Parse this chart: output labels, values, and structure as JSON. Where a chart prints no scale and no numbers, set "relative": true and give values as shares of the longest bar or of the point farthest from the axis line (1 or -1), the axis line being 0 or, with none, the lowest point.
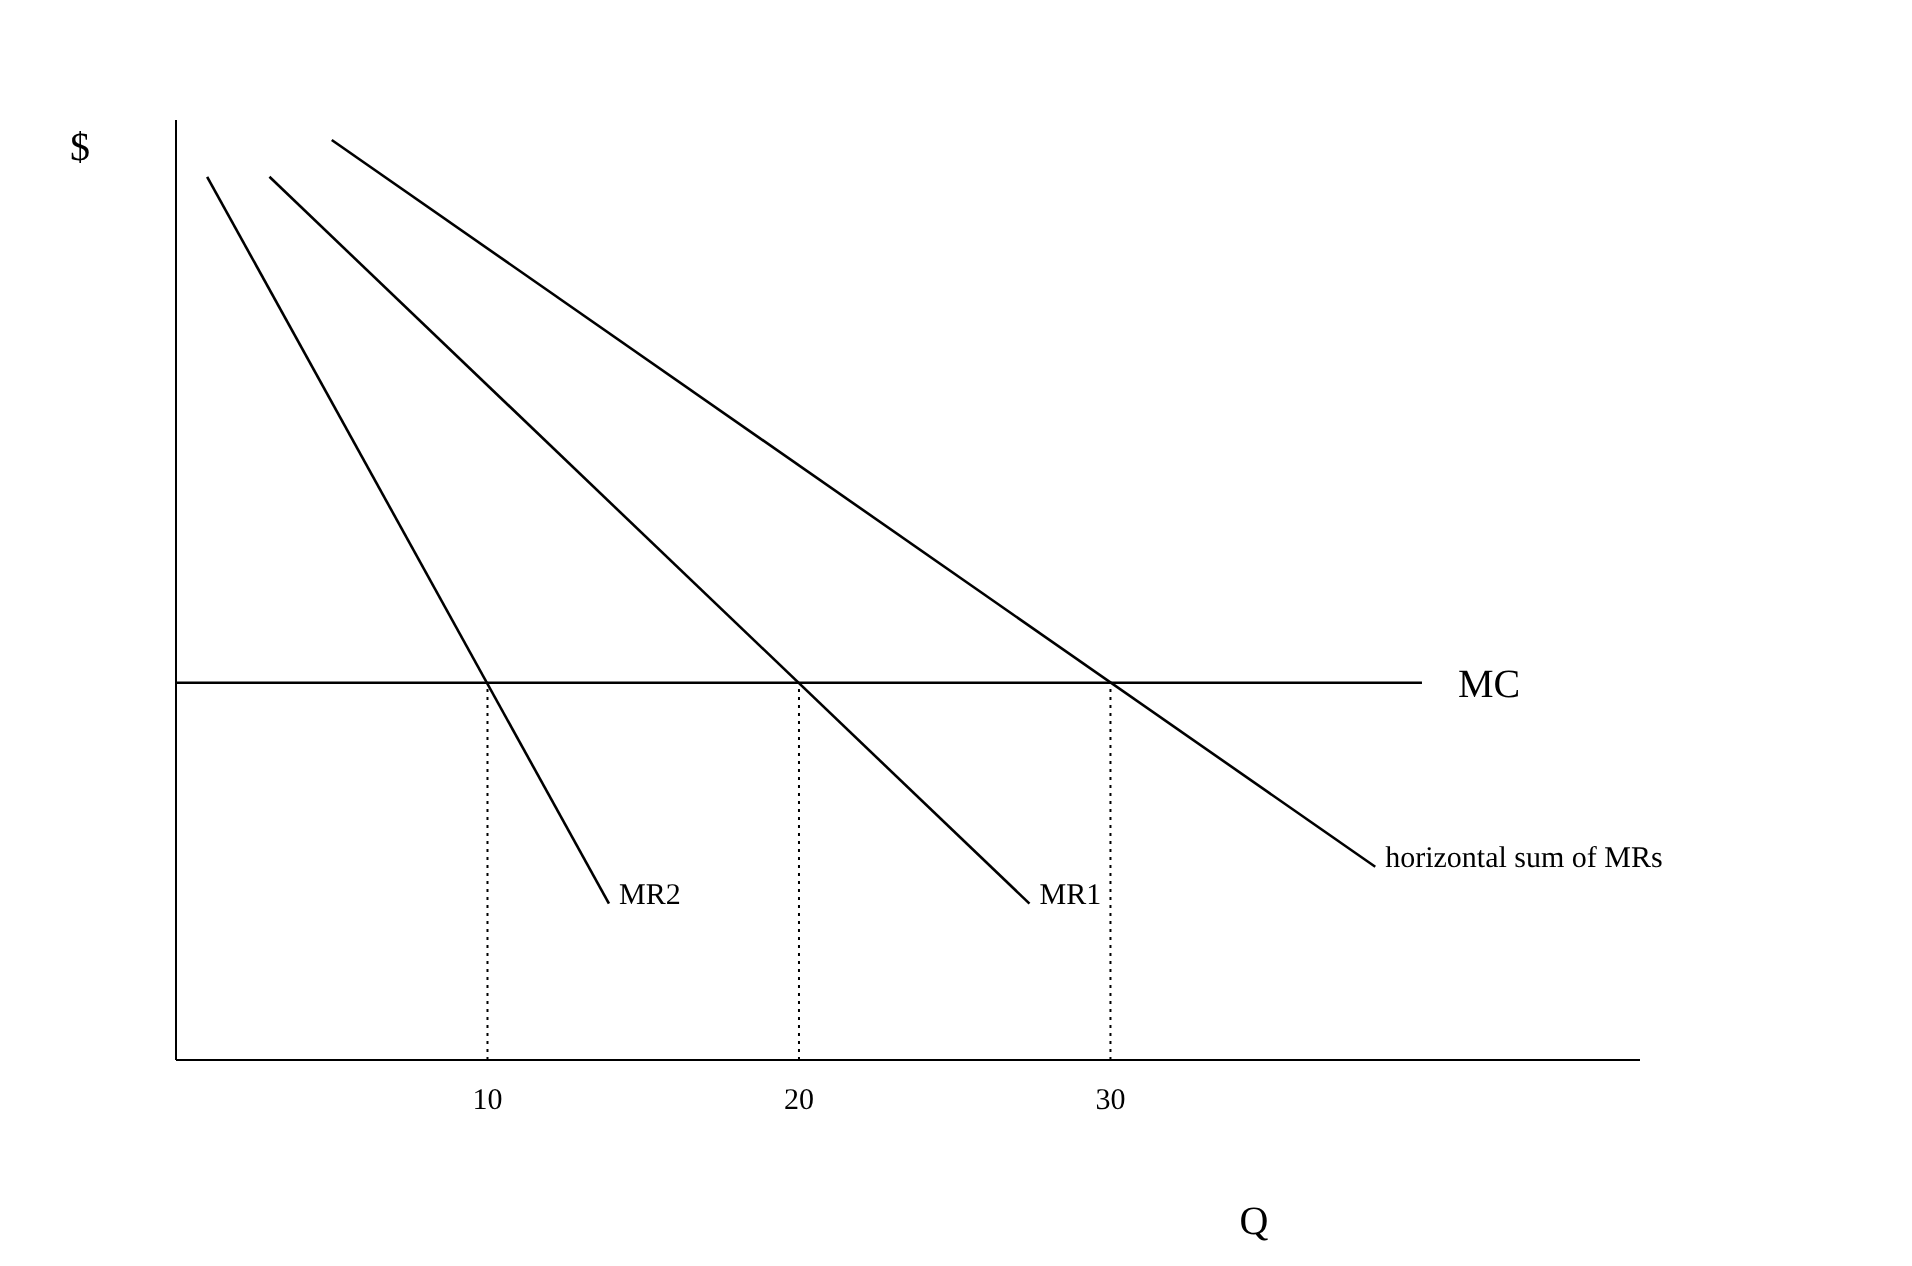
{
  "chart_data": {
    "type": "line",
    "xlabel": "Q",
    "ylabel": "$",
    "relative": true,
    "tick_labels": "x",
    "xlim": [
      0,
      47
    ],
    "xticks": [
      10,
      20,
      30
    ],
    "marker": "none",
    "series": [
      {
        "name": "MR2",
        "color": "#000000",
        "x": [
          1,
          13.9
        ],
        "values": [
          0.96,
          0.17
        ]
      },
      {
        "name": "MR1",
        "color": "#000000",
        "x": [
          3,
          27.4
        ],
        "values": [
          0.96,
          0.17
        ]
      },
      {
        "name": "horizontal sum of MRs",
        "color": "#000000",
        "x": [
          5,
          38.5
        ],
        "values": [
          1.0,
          0.21
        ]
      },
      {
        "name": "MC",
        "color": "#000000",
        "x": [
          0,
          40
        ],
        "values": [
          0.41,
          0.41
        ]
      }
    ],
    "ref_lines": [
      {
        "axis": "x",
        "value": 10,
        "line_style": "dotted",
        "color": "#000000"
      },
      {
        "axis": "x",
        "value": 20,
        "line_style": "dotted",
        "color": "#000000"
      },
      {
        "axis": "x",
        "value": 30,
        "line_style": "dotted",
        "color": "#000000"
      }
    ]
  }
}
